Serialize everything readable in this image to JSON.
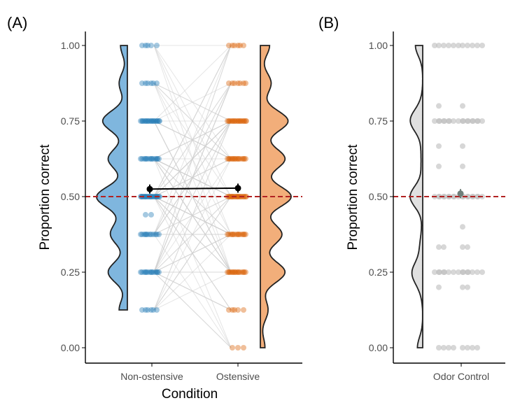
{
  "colors": {
    "non_ostensive": "#1f77b4",
    "non_ostensive_violin": "#7fb6de",
    "ostensive": "#d95f02",
    "ostensive_violin": "#f2ae7a",
    "control_points": "#bdbdbd",
    "control_violin": "#e0e0e0",
    "chance_line": "#b22222",
    "connector": "#d0d0d0"
  },
  "chart_data": [
    {
      "panel": "(A)",
      "type": "scatter",
      "ylabel": "Proportion correct",
      "xlabel": "Condition",
      "categories": [
        "Non-ostensive",
        "Ostensive"
      ],
      "ylim": [
        0,
        1
      ],
      "yticks": [
        "0.00",
        "0.25",
        "0.50",
        "0.75",
        "1.00"
      ],
      "reference_line": 0.5,
      "levels": [
        0,
        0.125,
        0.25,
        0.375,
        0.5,
        0.625,
        0.75,
        0.875,
        1.0
      ],
      "series": [
        {
          "name": "Non-ostensive",
          "level_counts": [
            0,
            6,
            14,
            12,
            22,
            14,
            18,
            6,
            5
          ],
          "extra_points": [
            0.44,
            0.44
          ],
          "mean": 0.525,
          "ci": [
            0.51,
            0.54
          ]
        },
        {
          "name": "Ostensive",
          "level_counts": [
            3,
            5,
            16,
            14,
            20,
            16,
            18,
            7,
            6
          ],
          "extra_points": [],
          "mean": 0.528,
          "ci": [
            0.513,
            0.543
          ]
        }
      ]
    },
    {
      "panel": "(B)",
      "type": "scatter",
      "ylabel": "Proportion correct",
      "categories": [
        "Odor Control"
      ],
      "ylim": [
        0,
        1
      ],
      "yticks": [
        "0.00",
        "0.25",
        "0.50",
        "0.75",
        "1.00"
      ],
      "reference_line": 0.5,
      "values": [
        1,
        1,
        1,
        1,
        1,
        1,
        1,
        1,
        1,
        1,
        1,
        0.8,
        0.8,
        0.75,
        0.75,
        0.75,
        0.75,
        0.75,
        0.75,
        0.75,
        0.75,
        0.75,
        0.75,
        0.75,
        0.75,
        0.75,
        0.75,
        0.75,
        0.75,
        0.75,
        0.75,
        0.667,
        0.667,
        0.6,
        0.6,
        0.5,
        0.5,
        0.5,
        0.5,
        0.5,
        0.5,
        0.5,
        0.5,
        0.5,
        0.5,
        0.5,
        0.5,
        0.5,
        0.5,
        0.5,
        0.5,
        0.5,
        0.5,
        0.5,
        0.4,
        0.333,
        0.333,
        0.333,
        0.333,
        0.25,
        0.25,
        0.25,
        0.25,
        0.25,
        0.25,
        0.25,
        0.25,
        0.25,
        0.25,
        0.25,
        0.25,
        0.25,
        0.25,
        0.25,
        0.2,
        0.2,
        0.2,
        0,
        0,
        0,
        0,
        0,
        0,
        0,
        0
      ],
      "mean": 0.51,
      "ci": [
        0.495,
        0.525
      ]
    }
  ]
}
